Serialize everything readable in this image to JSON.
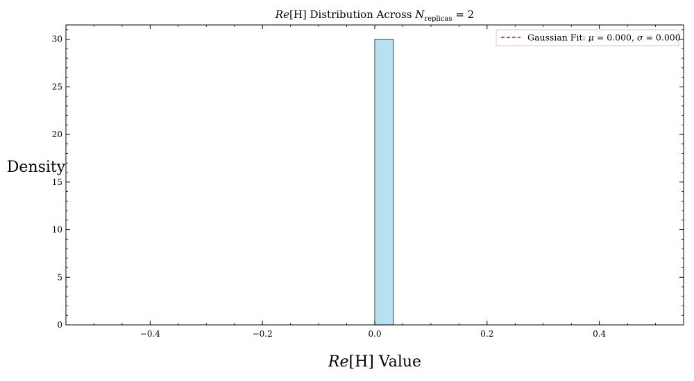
{
  "chart_data": {
    "type": "bar",
    "title": "Re[H] Distribution Across N_replicas = 2",
    "title_parts": {
      "re": "Re",
      "h": "[H]",
      "mid": " Distribution Across ",
      "n": "N",
      "sub": "replicas",
      "eq": " = 2"
    },
    "xlabel": "Re[H] Value",
    "xlabel_parts": {
      "re": "Re",
      "h": "[H]",
      "rest": " Value"
    },
    "ylabel": "Density",
    "xlim": [
      -0.55,
      0.55
    ],
    "ylim": [
      0,
      31.5
    ],
    "xticks": [
      -0.4,
      -0.2,
      0.0,
      0.2,
      0.4
    ],
    "xtick_labels": [
      "−0.4",
      "−0.2",
      "0.0",
      "0.2",
      "0.4"
    ],
    "yticks": [
      0,
      5,
      10,
      15,
      20,
      25,
      30
    ],
    "ytick_labels": [
      "0",
      "5",
      "10",
      "15",
      "20",
      "25",
      "30"
    ],
    "bins": [
      {
        "x0": 0.0,
        "x1": 0.0333,
        "density": 30
      }
    ],
    "series": [
      {
        "name": "Gaussian Fit: μ = 0.000, σ = 0.000",
        "mu": 0.0,
        "sigma": 0.0
      }
    ],
    "legend": {
      "placement": "top-right",
      "label_parts": {
        "prefix": "Gaussian Fit: ",
        "mu_sym": "μ",
        "mu_val": " = 0.000, ",
        "sigma_sym": "σ",
        "sigma_val": " = 0.000"
      }
    },
    "grid": false,
    "colors": {
      "bar_fill": "#b7e0f0",
      "bar_edge": "#3c5a6e",
      "fit_line": "#e00000",
      "axes": "#000000"
    }
  }
}
